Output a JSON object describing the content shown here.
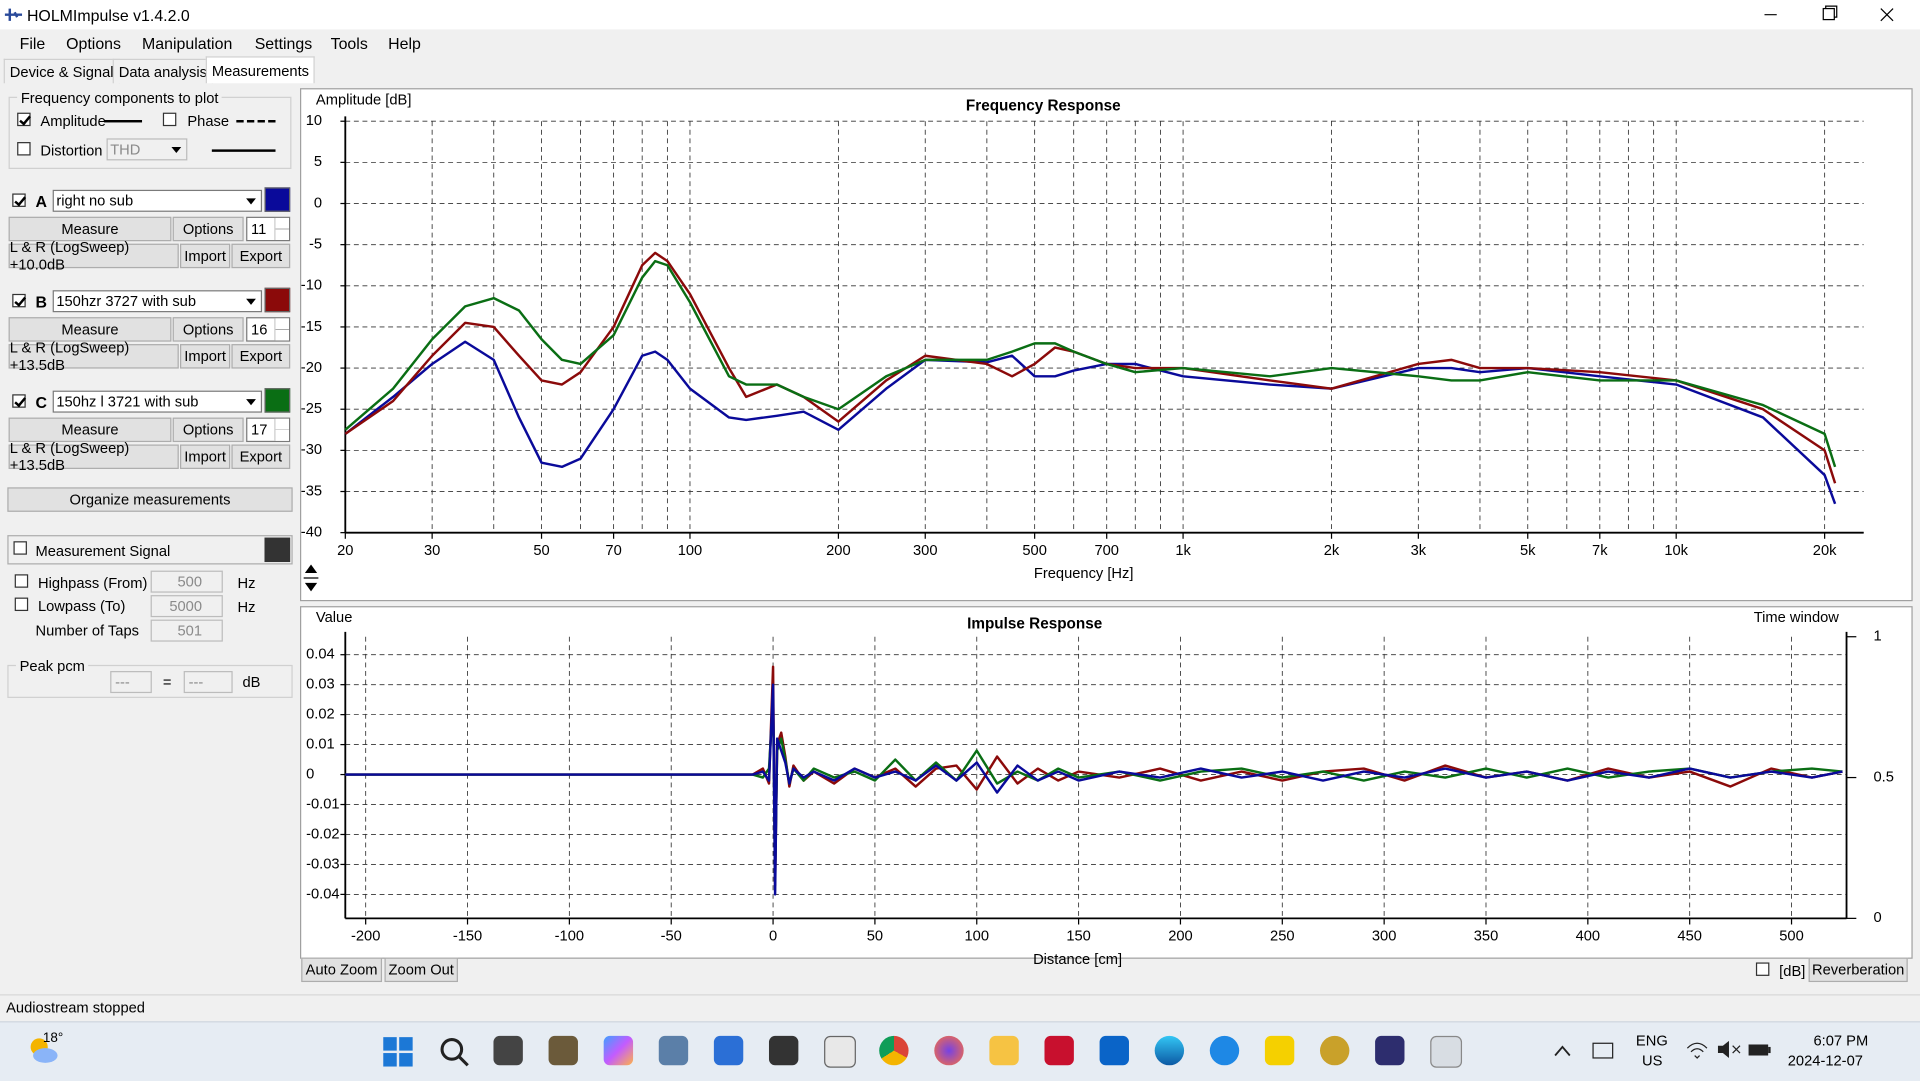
{
  "window": {
    "title": "HOLMImpulse v1.4.2.0"
  },
  "menu": [
    "File",
    "Options",
    "Manipulation",
    "Settings",
    "Tools",
    "Help"
  ],
  "tabs": [
    "Device & Signal",
    "Data analysis",
    "Measurements"
  ],
  "components": {
    "title": "Frequency components to plot",
    "amplitude": "Amplitude",
    "phase": "Phase",
    "distortion": "Distortion",
    "distortion_type": "THD"
  },
  "measurements": [
    {
      "letter": "A",
      "measure": "Measure",
      "options": "Options",
      "count": 11,
      "sweep": "L & R (LogSweep) +10.0dB",
      "import": "Import",
      "export": "Export"
    },
    {
      "letter": "B",
      "measure": "Measure",
      "options": "Options",
      "count": 16,
      "sweep": "L & R (LogSweep) +13.5dB",
      "import": "Import",
      "export": "Export"
    },
    {
      "letter": "C",
      "measure": "Measure",
      "options": "Options",
      "count": 17,
      "sweep": "L & R (LogSweep) +13.5dB",
      "import": "Import",
      "export": "Export"
    }
  ],
  "organize": "Organize measurements",
  "signal": {
    "title": "Measurement Signal",
    "highpass": "Highpass (From)",
    "highpass_value": 500,
    "highpass_unit": "Hz",
    "lowpass": "Lowpass (To)",
    "lowpass_value": 5000,
    "lowpass_unit": "Hz",
    "taps": "Number of Taps",
    "taps_value": 501
  },
  "peak": {
    "title": "Peak pcm",
    "left": "---",
    "equals": "=",
    "right": "---",
    "unit": "dB"
  },
  "frequency_response": {
    "type": "line",
    "title": "Frequency Response",
    "ylabel": "Amplitude [dB]",
    "xlabel": "Frequency [Hz]",
    "xscale": "log",
    "grid": true,
    "xlim": [
      20,
      24000
    ],
    "ylim": [
      -40,
      10
    ],
    "xticks": [
      20,
      30,
      50,
      70,
      100,
      200,
      300,
      500,
      700,
      {
        "value": 1000,
        "label": "1k"
      },
      {
        "value": 2000,
        "label": "2k"
      },
      {
        "value": 3000,
        "label": "3k"
      },
      {
        "value": 5000,
        "label": "5k"
      },
      {
        "value": 7000,
        "label": "7k"
      },
      {
        "value": 10000,
        "label": "10k"
      },
      {
        "value": 20000,
        "label": "20k"
      }
    ],
    "minor_xticks": [
      40,
      60,
      80,
      90,
      400,
      600,
      800,
      900,
      4000,
      6000,
      8000,
      9000
    ],
    "yticks": [
      -40,
      -35,
      -30,
      -25,
      -20,
      -15,
      -10,
      -5,
      0,
      5,
      10
    ],
    "x": [
      20,
      25,
      30,
      35,
      40,
      45,
      50,
      55,
      60,
      70,
      80,
      85,
      90,
      100,
      120,
      130,
      150,
      170,
      200,
      250,
      300,
      400,
      450,
      500,
      550,
      600,
      700,
      800,
      1000,
      1500,
      2000,
      3000,
      3500,
      4000,
      5000,
      7000,
      10000,
      15000,
      20000,
      21000
    ],
    "series": [
      {
        "name": "right no sub",
        "color": "#0a0a9a",
        "values": [
          -28,
          -23.5,
          -19.5,
          -16.8,
          -19,
          -26,
          -31.5,
          -32,
          -31,
          -25,
          -18.5,
          -18,
          -19,
          -22.5,
          -26,
          -26.3,
          -25.8,
          -25.3,
          -27.5,
          -22.5,
          -19,
          -19.3,
          -18.5,
          -21,
          -21,
          -20.3,
          -19.5,
          -19.5,
          -21,
          -22,
          -22.5,
          -20,
          -20,
          -20.5,
          -20,
          -21,
          -22,
          -26,
          -33,
          -36.5
        ]
      },
      {
        "name": "150hzr 3727  with sub",
        "color": "#8b0a0a",
        "values": [
          -28,
          -24,
          -18.5,
          -14.5,
          -15,
          -18.5,
          -21.5,
          -22,
          -20.5,
          -15,
          -7.5,
          -6,
          -7,
          -11,
          -20,
          -23.5,
          -22,
          -23.5,
          -26.5,
          -21.5,
          -18.5,
          -19.5,
          -21,
          -19.5,
          -17.5,
          -18,
          -19.5,
          -20,
          -20,
          -21.5,
          -22.5,
          -19.5,
          -19,
          -20,
          -20,
          -20.5,
          -21.5,
          -25,
          -30,
          -34
        ]
      },
      {
        "name": "150hz l 3721 with sub",
        "color": "#0a6e14",
        "values": [
          -27.5,
          -22.5,
          -16.5,
          -12.5,
          -11.5,
          -13,
          -16.5,
          -19,
          -19.5,
          -16,
          -9,
          -7,
          -7.5,
          -12,
          -21,
          -22,
          -22,
          -23.5,
          -25,
          -21,
          -19,
          -19,
          -18,
          -17,
          -17,
          -18,
          -19.5,
          -20.5,
          -20,
          -21,
          -20,
          -21,
          -21.5,
          -21.5,
          -20.5,
          -21.5,
          -21.5,
          -24.5,
          -28,
          -32
        ]
      }
    ]
  },
  "impulse_response": {
    "type": "line",
    "title": "Impulse Response",
    "ylabel": "Value",
    "y2label": "Time window",
    "xlabel": "Distance [cm]",
    "grid": true,
    "xlim": [
      -210,
      527
    ],
    "ylim": [
      -0.048,
      0.046
    ],
    "y2lim": [
      0,
      1
    ],
    "xticks": [
      -200,
      -150,
      -100,
      -50,
      0,
      50,
      100,
      150,
      200,
      250,
      300,
      350,
      400,
      450,
      500
    ],
    "yticks": [
      -0.04,
      -0.03,
      -0.02,
      -0.01,
      0,
      0.01,
      0.02,
      0.03,
      0.04
    ],
    "y2ticks": [
      0,
      0.5,
      1
    ],
    "x": [
      -210,
      -10,
      -5,
      -2,
      0,
      1,
      2,
      4,
      6,
      8,
      10,
      15,
      20,
      30,
      40,
      50,
      60,
      70,
      80,
      90,
      100,
      110,
      120,
      130,
      140,
      150,
      170,
      190,
      210,
      230,
      250,
      270,
      290,
      310,
      330,
      350,
      370,
      390,
      410,
      430,
      450,
      470,
      490,
      510,
      525
    ],
    "series": [
      {
        "color": "#8b0a0a",
        "values": [
          0,
          0,
          0.002,
          -0.003,
          0.036,
          -0.037,
          0.01,
          0.014,
          0.006,
          -0.004,
          0.003,
          -0.002,
          0.001,
          -0.003,
          0.002,
          -0.001,
          0.002,
          -0.004,
          0.002,
          0.003,
          -0.005,
          0.006,
          -0.003,
          0.002,
          -0.002,
          0.001,
          -0.001,
          0.002,
          -0.002,
          0.001,
          -0.002,
          0.001,
          0.002,
          -0.002,
          0.003,
          -0.001,
          0.001,
          -0.002,
          0.002,
          -0.001,
          0.001,
          -0.004,
          0.002,
          -0.001,
          0.001
        ]
      },
      {
        "color": "#0a6e14",
        "values": [
          0,
          0,
          -0.001,
          0.002,
          0.025,
          -0.034,
          0.008,
          0.012,
          0.005,
          -0.003,
          0.002,
          -0.002,
          0.002,
          -0.001,
          0.001,
          -0.002,
          0.005,
          -0.002,
          0.004,
          -0.002,
          0.008,
          -0.003,
          0.001,
          -0.002,
          0.002,
          -0.001,
          0.001,
          -0.002,
          0.001,
          0.002,
          -0.001,
          0.001,
          -0.002,
          0.001,
          -0.001,
          0.002,
          -0.001,
          0.002,
          -0.001,
          0.001,
          0.002,
          -0.001,
          0.001,
          0.002,
          0.001
        ]
      },
      {
        "color": "#0a0a9a",
        "values": [
          0,
          0,
          0.001,
          -0.002,
          0.03,
          -0.04,
          0.012,
          0.008,
          0.004,
          -0.003,
          0.002,
          -0.001,
          0.001,
          -0.002,
          0.002,
          -0.001,
          0.001,
          -0.002,
          0.003,
          -0.002,
          0.004,
          -0.006,
          0.003,
          -0.002,
          0.001,
          -0.002,
          0.001,
          -0.001,
          0.002,
          -0.001,
          0.001,
          -0.002,
          0.001,
          -0.001,
          0.002,
          -0.001,
          0.001,
          -0.002,
          0.001,
          -0.001,
          0.002,
          -0.001,
          0.001,
          -0.001,
          0.001
        ]
      }
    ]
  },
  "toolbar": {
    "auto_zoom": "Auto Zoom",
    "zoom_out": "Zoom Out",
    "db": "[dB]",
    "reverberation": "Reverberation"
  },
  "status": "Audiostream stopped",
  "taskbar": {
    "weather": "18°",
    "lang": "ENG",
    "region": "US",
    "time": "6:07 PM",
    "date": "2024-12-07"
  }
}
